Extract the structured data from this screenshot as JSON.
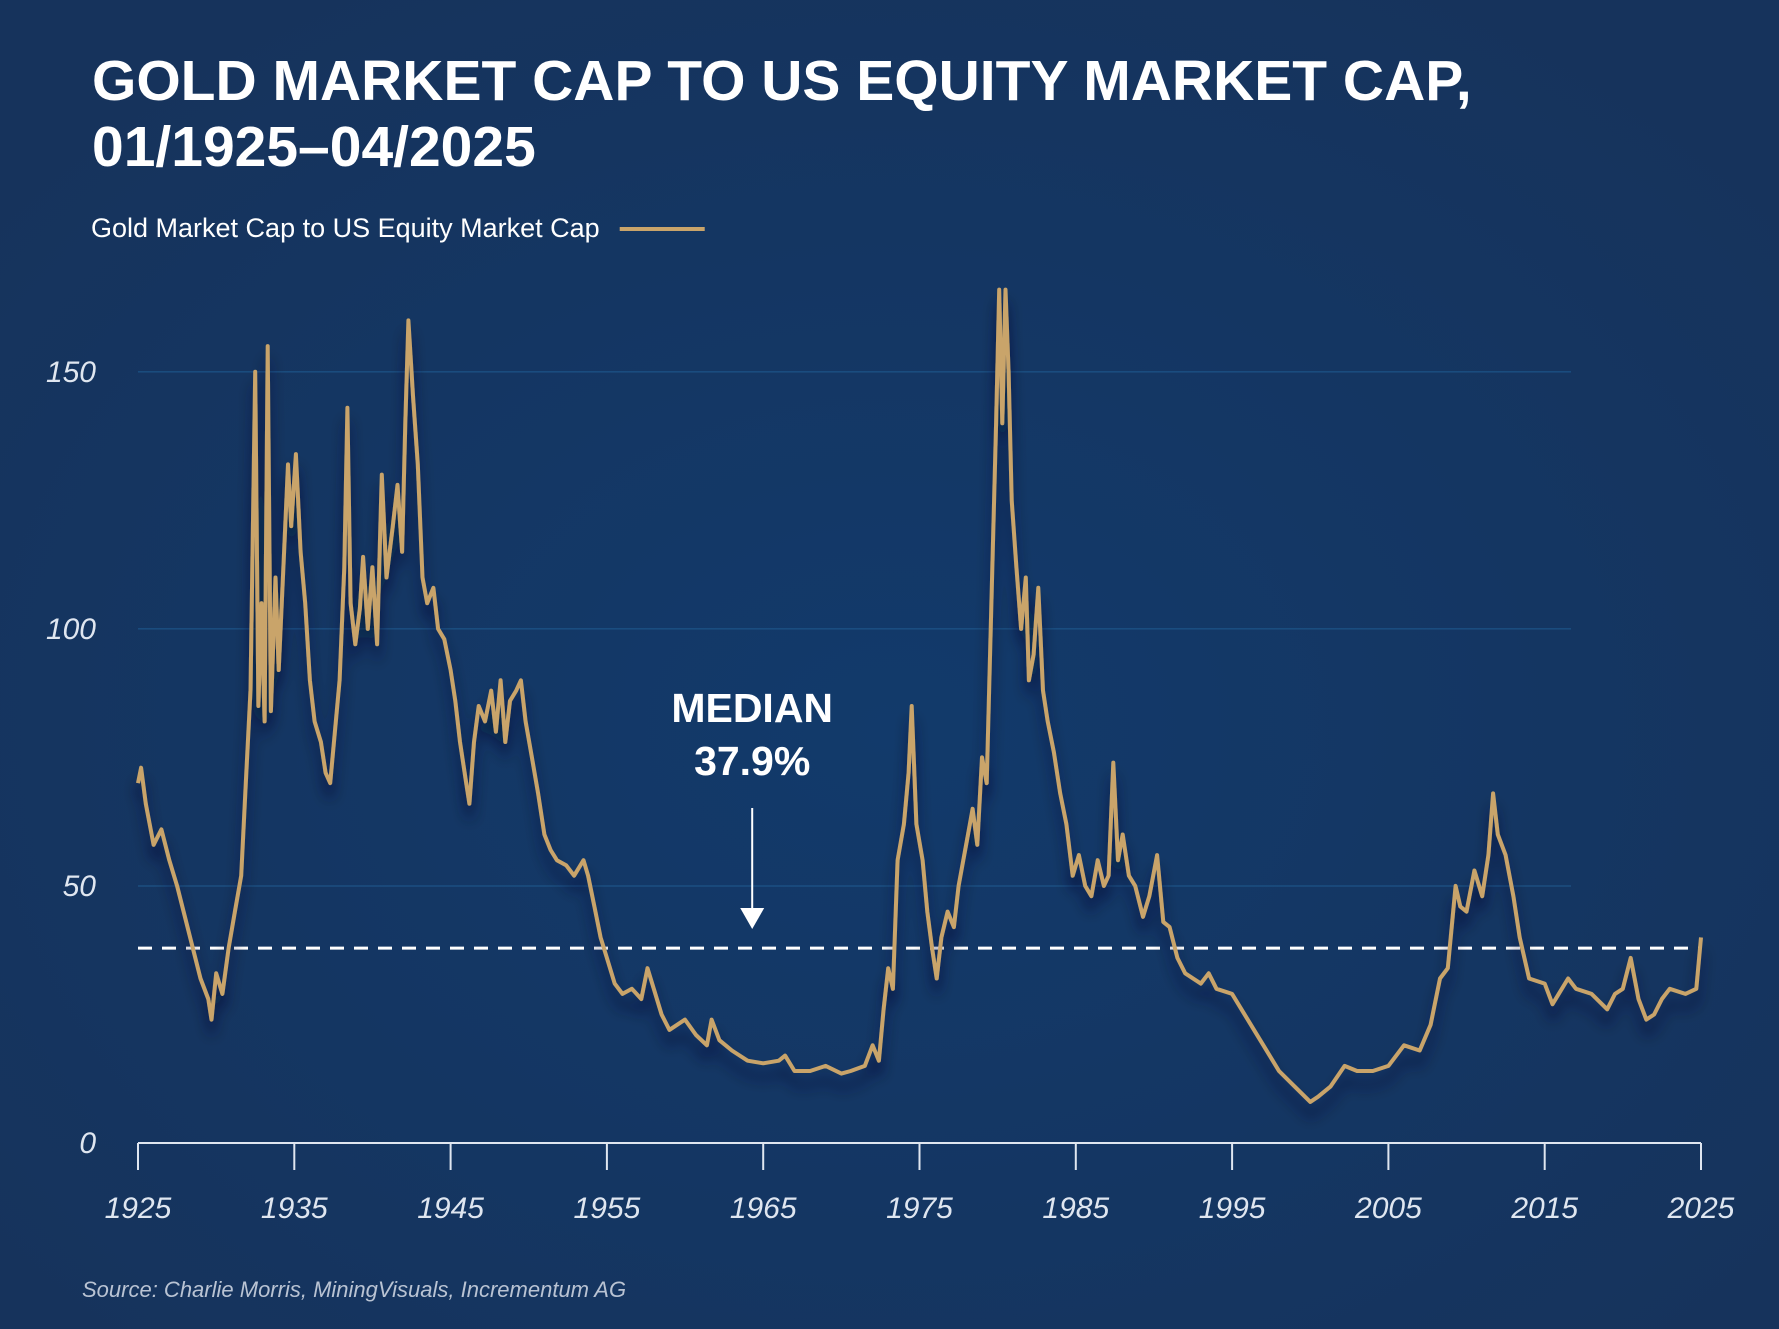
{
  "chart_data": {
    "type": "line",
    "title": [
      "GOLD MARKET CAP TO US EQUITY MARKET CAP,",
      "01/1925–04/2025"
    ],
    "source": "Source: Charlie Morris, MiningVisuals, Incrementum AG",
    "x": [
      1925.0,
      1925.2,
      1925.5,
      1926,
      1926.5,
      1927,
      1927.5,
      1928,
      1928.5,
      1929,
      1929.5,
      1929.7,
      1930,
      1930.4,
      1930.8,
      1931.2,
      1931.6,
      1931.9,
      1932.2,
      1932.5,
      1932.7,
      1932.9,
      1933.1,
      1933.3,
      1933.5,
      1933.8,
      1934,
      1934.3,
      1934.6,
      1934.8,
      1935.1,
      1935.4,
      1935.7,
      1936,
      1936.3,
      1936.7,
      1937,
      1937.3,
      1937.6,
      1937.9,
      1938.2,
      1938.4,
      1938.6,
      1938.9,
      1939.2,
      1939.4,
      1939.7,
      1940,
      1940.3,
      1940.6,
      1940.9,
      1941.3,
      1941.6,
      1941.9,
      1942.1,
      1942.3,
      1942.6,
      1942.9,
      1943.2,
      1943.5,
      1943.9,
      1944.2,
      1944.6,
      1945,
      1945.3,
      1945.6,
      1946,
      1946.2,
      1946.5,
      1946.8,
      1947.2,
      1947.6,
      1947.9,
      1948.2,
      1948.5,
      1948.8,
      1949.2,
      1949.5,
      1949.8,
      1950.2,
      1950.6,
      1951,
      1951.4,
      1951.8,
      1952.4,
      1952.9,
      1953.5,
      1953.8,
      1954.2,
      1954.6,
      1955,
      1955.5,
      1956,
      1956.6,
      1957.2,
      1957.6,
      1958,
      1958.5,
      1959,
      1960,
      1960.7,
      1961.4,
      1961.7,
      1962.2,
      1963,
      1964,
      1965,
      1966,
      1966.4,
      1967,
      1968,
      1969,
      1970,
      1970.6,
      1971.5,
      1972,
      1972.4,
      1972.7,
      1973,
      1973.3,
      1973.6,
      1974,
      1974.3,
      1974.5,
      1974.8,
      1975.2,
      1975.5,
      1975.8,
      1976.1,
      1976.4,
      1976.8,
      1977.2,
      1977.5,
      1977.8,
      1978.1,
      1978.4,
      1978.7,
      1979,
      1979.3,
      1979.6,
      1979.9,
      1980.1,
      1980.3,
      1980.5,
      1980.7,
      1980.9,
      1981.2,
      1981.5,
      1981.8,
      1982,
      1982.3,
      1982.6,
      1982.9,
      1983.2,
      1983.6,
      1984,
      1984.4,
      1984.8,
      1985.2,
      1985.6,
      1986,
      1986.4,
      1986.8,
      1987.1,
      1987.4,
      1987.7,
      1988,
      1988.4,
      1988.8,
      1989.3,
      1989.7,
      1990.2,
      1990.6,
      1991,
      1991.5,
      1992,
      1993,
      1993.5,
      1994,
      1995,
      1996,
      1997,
      1998,
      1999,
      2000,
      2000.5,
      2001.3,
      2002.2,
      2003,
      2004,
      2005,
      2006,
      2007,
      2007.7,
      2008.3,
      2008.8,
      2009.3,
      2009.6,
      2010,
      2010.5,
      2011,
      2011.4,
      2011.7,
      2012,
      2012.5,
      2013,
      2013.4,
      2014,
      2015,
      2015.5,
      2016.5,
      2017,
      2018,
      2019,
      2019.5,
      2020,
      2020.5,
      2021,
      2021.5,
      2022,
      2022.5,
      2023,
      2024,
      2024.7,
      2025.0
    ],
    "series": [
      {
        "name": "Gold Market Cap to US Equity Market Cap",
        "color": "#c9a46a",
        "values": [
          70,
          73,
          66,
          58,
          61,
          55,
          50,
          44,
          38,
          32,
          28,
          24,
          33,
          29,
          38,
          45,
          52,
          70,
          88,
          150,
          85,
          105,
          82,
          155,
          84,
          110,
          92,
          112,
          132,
          120,
          134,
          115,
          105,
          90,
          82,
          78,
          72,
          70,
          80,
          90,
          112,
          143,
          105,
          97,
          104,
          114,
          100,
          112,
          97,
          130,
          110,
          120,
          128,
          115,
          140,
          160,
          145,
          132,
          110,
          105,
          108,
          100,
          98,
          92,
          86,
          78,
          70,
          66,
          78,
          85,
          82,
          88,
          80,
          90,
          78,
          86,
          88,
          90,
          82,
          75,
          68,
          60,
          57,
          55,
          54,
          52,
          55,
          52,
          46,
          40,
          36,
          31,
          29,
          30,
          28,
          34,
          30,
          25,
          22,
          24,
          21,
          19,
          24,
          20,
          18,
          16,
          15.5,
          16,
          17,
          14,
          14,
          15,
          13.5,
          14,
          15,
          19,
          16,
          26,
          34,
          30,
          55,
          62,
          72,
          85,
          62,
          55,
          45,
          38,
          32,
          40,
          45,
          42,
          50,
          55,
          60,
          65,
          58,
          75,
          70,
          105,
          140,
          166,
          140,
          166,
          150,
          125,
          112,
          100,
          110,
          90,
          95,
          108,
          88,
          82,
          76,
          68,
          62,
          52,
          56,
          50,
          48,
          55,
          50,
          52,
          74,
          55,
          60,
          52,
          50,
          44,
          48,
          56,
          43,
          42,
          36,
          33,
          31,
          33,
          30,
          29,
          24,
          19,
          14,
          11,
          8,
          9,
          11,
          15,
          14,
          14,
          15,
          19,
          18,
          23,
          32,
          34,
          50,
          46,
          45,
          53,
          48,
          56,
          68,
          60,
          56,
          48,
          40,
          32,
          31,
          27,
          32,
          30,
          29,
          26,
          29,
          30,
          36,
          28,
          24,
          25,
          28,
          30,
          29,
          30,
          40
        ]
      }
    ],
    "median_line": {
      "value": 37.9,
      "title": "MEDIAN",
      "label": "37.9%"
    },
    "xlim": [
      1925,
      2025
    ],
    "xticks": [
      1925,
      1935,
      1945,
      1955,
      1965,
      1975,
      1985,
      1995,
      2005,
      2015,
      2025
    ],
    "ylim": [
      0,
      170
    ],
    "yticks": [
      0,
      50,
      100,
      150
    ],
    "grid": true
  }
}
